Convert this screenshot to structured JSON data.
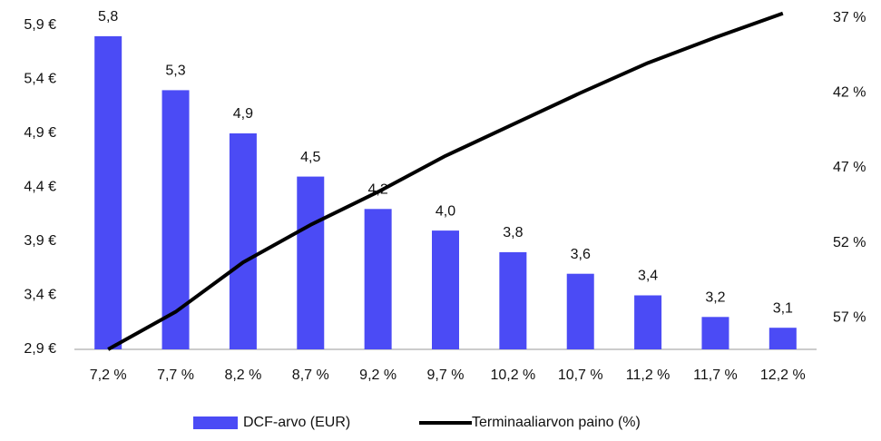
{
  "chart_data": {
    "type": "bar_line",
    "categories": [
      "7,2 %",
      "7,7 %",
      "8,2 %",
      "8,7 %",
      "9,2 %",
      "9,7 %",
      "10,2 %",
      "10,7 %",
      "11,2 %",
      "11,7 %",
      "12,2 %"
    ],
    "series": [
      {
        "name": "DCF-arvo (EUR)",
        "type": "bar",
        "color": "#4b4bf5",
        "values": [
          5.8,
          5.3,
          4.9,
          4.5,
          4.2,
          4.0,
          3.8,
          3.6,
          3.4,
          3.2,
          3.1
        ],
        "value_labels": [
          "5,8",
          "5,3",
          "4,9",
          "4,5",
          "4,2",
          "4,0",
          "3,8",
          "3,6",
          "3,4",
          "3,2",
          "3,1"
        ]
      },
      {
        "name": "Terminaaliarvon paino (%)",
        "type": "line",
        "axis": "y2",
        "color": "#000000",
        "values": [
          59.1,
          56.6,
          53.3,
          50.8,
          48.6,
          46.2,
          44.1,
          42.0,
          40.0,
          38.3,
          36.7
        ]
      }
    ],
    "ylim": [
      2.9,
      5.9
    ],
    "yticks": [
      {
        "value": 2.9,
        "label": "2,9 €"
      },
      {
        "value": 3.4,
        "label": "3,4 €"
      },
      {
        "value": 3.9,
        "label": "3,9 €"
      },
      {
        "value": 4.4,
        "label": "4,4 €"
      },
      {
        "value": 4.9,
        "label": "4,9 €"
      },
      {
        "value": 5.4,
        "label": "5,4 €"
      },
      {
        "value": 5.9,
        "label": "5,9 €"
      }
    ],
    "y2lim": [
      59.1,
      37.5
    ],
    "y2ticks": [
      {
        "value": 37,
        "label": "37 %"
      },
      {
        "value": 42,
        "label": "42 %"
      },
      {
        "value": 47,
        "label": "47 %"
      },
      {
        "value": 52,
        "label": "52 %"
      },
      {
        "value": 57,
        "label": "57 %"
      }
    ],
    "legend": "bottom"
  }
}
